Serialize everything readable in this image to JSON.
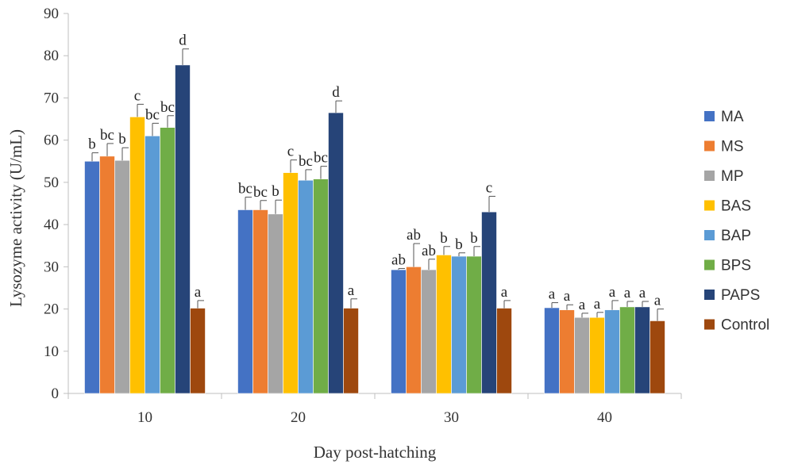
{
  "chart_data": {
    "type": "bar",
    "xlabel": "Day post-hatching",
    "ylabel": "Lysozyme activity (U/mL)",
    "ylim": [
      0,
      90
    ],
    "yticks": [
      0,
      10,
      20,
      30,
      40,
      50,
      60,
      70,
      80,
      90
    ],
    "grid": false,
    "legend_position": "right",
    "categories": [
      "10",
      "20",
      "30",
      "40"
    ],
    "series": [
      {
        "name": "MA",
        "color": "#4472C4",
        "values": [
          55,
          43.5,
          29.3,
          20.3
        ],
        "errors": [
          2,
          3,
          0.3,
          1.2
        ],
        "labels": [
          "b",
          "bc",
          "ab",
          "a"
        ]
      },
      {
        "name": "MS",
        "color": "#ED7D31",
        "values": [
          56.2,
          43.5,
          30,
          19.8
        ],
        "errors": [
          3,
          2.2,
          5.5,
          1.2
        ],
        "labels": [
          "bc",
          "bc",
          "ab",
          "a"
        ]
      },
      {
        "name": "MP",
        "color": "#A5A5A5",
        "values": [
          55.2,
          42.5,
          29.3,
          18
        ],
        "errors": [
          3,
          3.3,
          2.5,
          1
        ],
        "labels": [
          "b",
          "b",
          "ab",
          "a"
        ]
      },
      {
        "name": "BAS",
        "color": "#FFC000",
        "values": [
          65.5,
          52.3,
          32.8,
          18
        ],
        "errors": [
          3,
          3,
          2,
          1.2
        ],
        "labels": [
          "c",
          "c",
          "b",
          "a"
        ]
      },
      {
        "name": "BAP",
        "color": "#5B9BD5",
        "values": [
          61,
          50.5,
          32.5,
          19.8
        ],
        "errors": [
          3,
          2.5,
          0.8,
          2.2
        ],
        "labels": [
          "bc",
          "bc",
          "b",
          "a"
        ]
      },
      {
        "name": "BPS",
        "color": "#70AD47",
        "values": [
          63,
          50.8,
          32.5,
          20.5
        ],
        "errors": [
          2.8,
          3,
          2.3,
          1.3
        ],
        "labels": [
          "bc",
          "bc",
          "b",
          "a"
        ]
      },
      {
        "name": "PAPS",
        "color": "#264478",
        "values": [
          77.8,
          66.5,
          43,
          20.5
        ],
        "errors": [
          3.8,
          2.8,
          3.7,
          1.3
        ],
        "labels": [
          "d",
          "d",
          "c",
          "a"
        ]
      },
      {
        "name": "Control",
        "color": "#9E480E",
        "values": [
          20.2,
          20.2,
          20.2,
          17.2
        ],
        "errors": [
          1.8,
          2.2,
          1.8,
          2.8
        ],
        "labels": [
          "a",
          "a",
          "a",
          "a"
        ]
      }
    ]
  }
}
